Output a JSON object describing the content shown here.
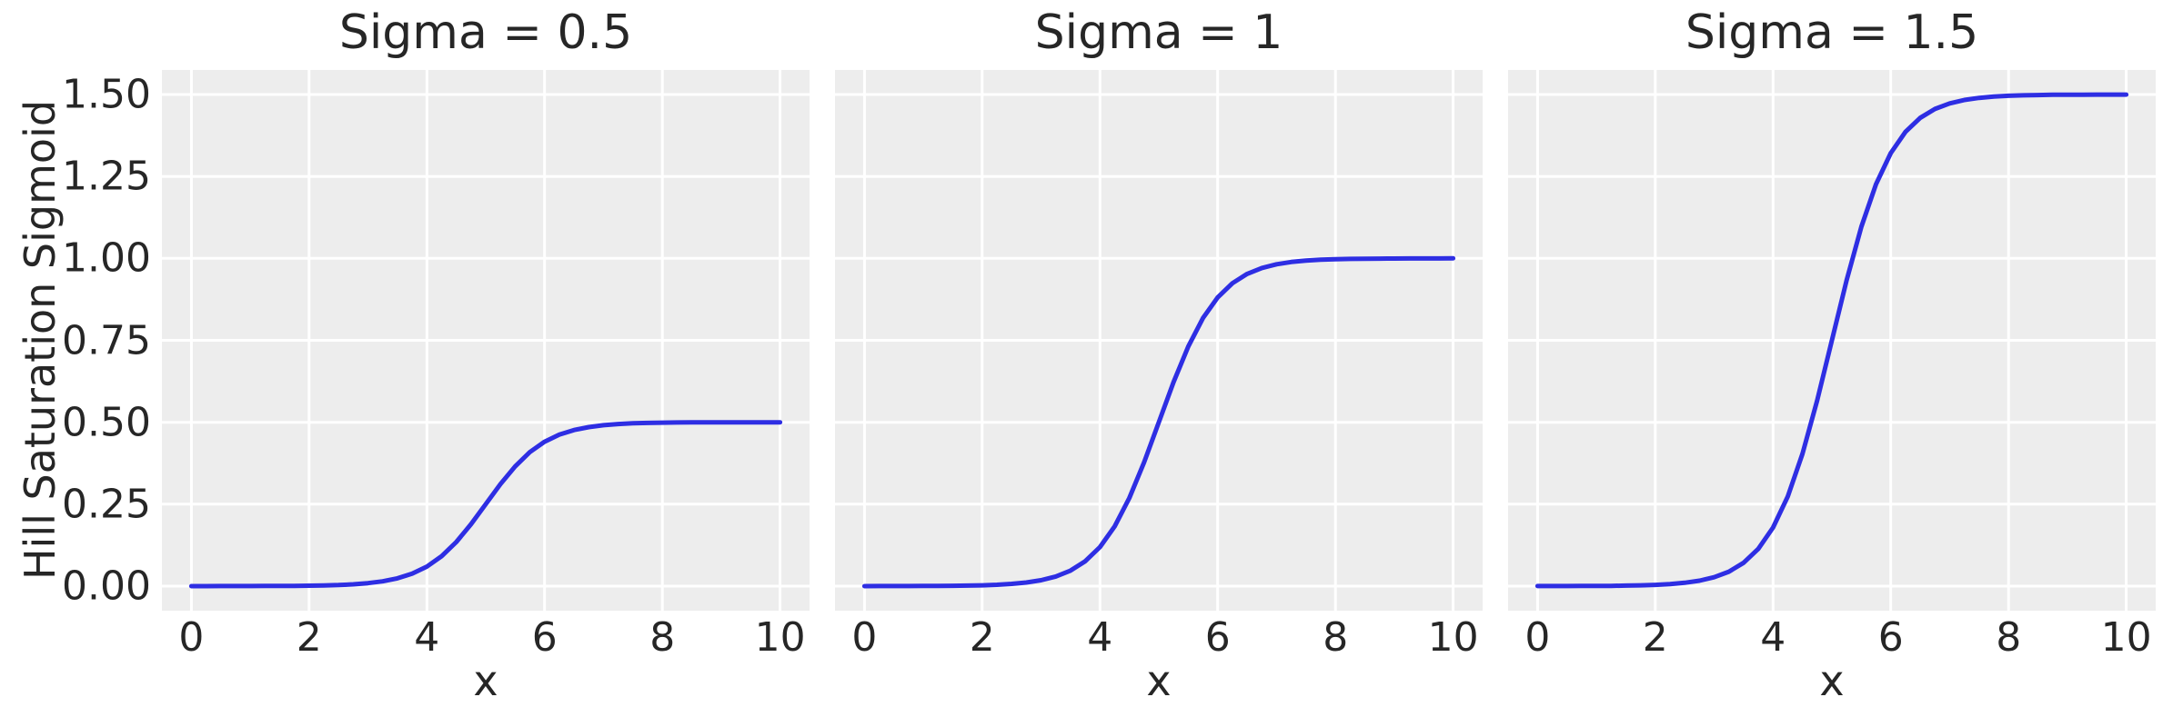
{
  "chart_data": {
    "type": "line",
    "xlabel": "x",
    "ylabel": "Hill Saturation Sigmoid",
    "xlim": [
      -0.5,
      10.5
    ],
    "ylim": [
      -0.075,
      1.575
    ],
    "grid": true,
    "legend": "none",
    "x_ticks": [
      0,
      2,
      4,
      6,
      8,
      10
    ],
    "x_tick_labels": [
      "0",
      "2",
      "4",
      "6",
      "8",
      "10"
    ],
    "y_ticks": [
      0,
      0.25,
      0.5,
      0.75,
      1.0,
      1.25,
      1.5
    ],
    "y_tick_labels": [
      "0.00",
      "0.25",
      "0.50",
      "0.75",
      "1.00",
      "1.25",
      "1.50"
    ],
    "style": {
      "plot_bg": "#ededed",
      "grid_color": "#ffffff",
      "line_color": "#2e2ee3",
      "text_color": "#262626",
      "figure_bg": "#ffffff"
    },
    "x": [
      0,
      0.25,
      0.5,
      0.75,
      1,
      1.25,
      1.5,
      1.75,
      2,
      2.25,
      2.5,
      2.75,
      3,
      3.25,
      3.5,
      3.75,
      4,
      4.25,
      4.5,
      4.75,
      5,
      5.25,
      5.5,
      5.75,
      6,
      6.25,
      6.5,
      6.75,
      7,
      7.25,
      7.5,
      7.75,
      8,
      8.25,
      8.5,
      8.75,
      9,
      9.25,
      9.5,
      9.75,
      10
    ],
    "subplots": [
      {
        "title": "Sigma = 0.5",
        "sigma": 0.5,
        "y": [
          0,
          0,
          0.0001,
          0.0001,
          0.0002,
          0.0003,
          0.0005,
          0.0008,
          0.0012,
          0.002,
          0.0033,
          0.0055,
          0.009,
          0.0147,
          0.0237,
          0.0379,
          0.0596,
          0.0912,
          0.1345,
          0.1888,
          0.25,
          0.3112,
          0.3655,
          0.4088,
          0.4404,
          0.4621,
          0.4763,
          0.4853,
          0.491,
          0.4945,
          0.4967,
          0.498,
          0.4988,
          0.4992,
          0.4995,
          0.4997,
          0.4998,
          0.4999,
          0.4999,
          0.5,
          0.5
        ]
      },
      {
        "title": "Sigma = 1",
        "sigma": 1,
        "y": [
          0,
          0.0001,
          0.0001,
          0.0002,
          0.0003,
          0.0006,
          0.0009,
          0.0015,
          0.0025,
          0.0041,
          0.0067,
          0.011,
          0.018,
          0.0293,
          0.0474,
          0.0759,
          0.1192,
          0.1824,
          0.2689,
          0.3775,
          0.5,
          0.6225,
          0.7311,
          0.8176,
          0.8808,
          0.9241,
          0.9526,
          0.9707,
          0.982,
          0.989,
          0.9933,
          0.9959,
          0.9975,
          0.9985,
          0.9991,
          0.9994,
          0.9997,
          0.9998,
          0.9999,
          0.9999,
          1
        ]
      },
      {
        "title": "Sigma = 1.5",
        "sigma": 1.5,
        "y": [
          0.0001,
          0.0001,
          0.0002,
          0.0003,
          0.0005,
          0.0008,
          0.0014,
          0.0023,
          0.0037,
          0.0061,
          0.01,
          0.0165,
          0.027,
          0.044,
          0.0711,
          0.1138,
          0.1788,
          0.2736,
          0.4034,
          0.5663,
          0.75,
          0.9337,
          1.0966,
          1.2264,
          1.3212,
          1.3862,
          1.4289,
          1.456,
          1.473,
          1.4835,
          1.49,
          1.4939,
          1.4963,
          1.4977,
          1.4986,
          1.4992,
          1.4995,
          1.4997,
          1.4998,
          1.4999,
          1.4999
        ]
      }
    ]
  }
}
